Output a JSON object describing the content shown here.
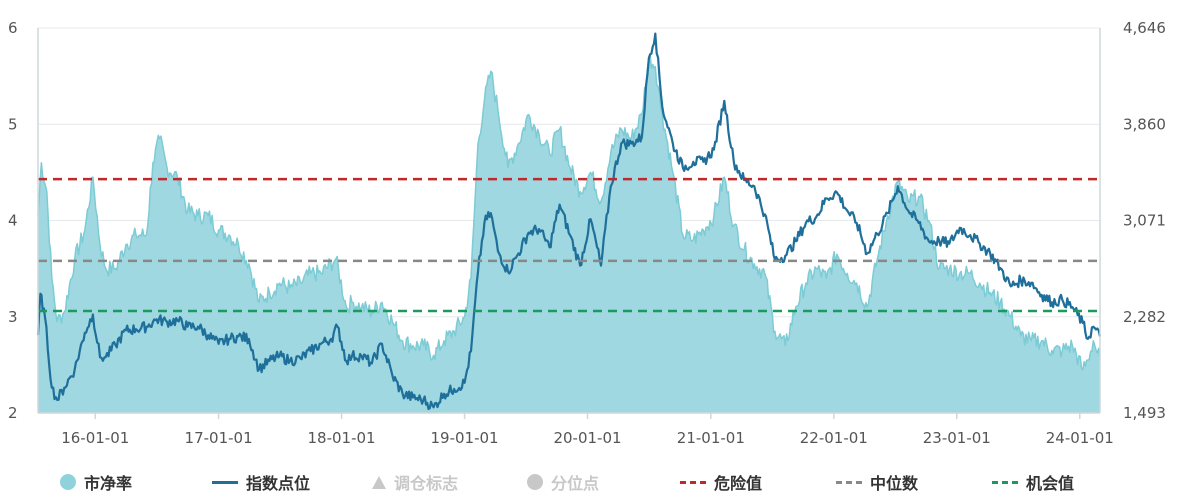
{
  "chart_data": {
    "type": "line",
    "x_tick_labels": [
      "16-01-01",
      "17-01-01",
      "18-01-01",
      "19-01-01",
      "20-01-01",
      "21-01-01",
      "22-01-01",
      "23-01-01",
      "24-01-01"
    ],
    "x_range": [
      "2015-07-15",
      "2024-03-01"
    ],
    "y_left": {
      "range": [
        2,
        6
      ],
      "ticks": [
        "2",
        "3",
        "4",
        "5",
        "6"
      ]
    },
    "y_right": {
      "range": [
        1493,
        4646
      ],
      "ticks": [
        "1,493",
        "2,282",
        "3,071",
        "3,860",
        "4,646"
      ]
    },
    "grid": "horizontal",
    "legend_position": "bottom",
    "colors": {
      "pb_fill": "#9fd8e0",
      "pb_line": "#7ccbd5",
      "index": "#1f6f9b",
      "danger": "#c0282b",
      "median": "#888888",
      "opportunity": "#1a9a5c",
      "axis": "#cfd8dc"
    },
    "reference_lines": [
      {
        "name": "危险值",
        "value": 4.43
      },
      {
        "name": "中位数",
        "value": 3.58
      },
      {
        "name": "机会值",
        "value": 3.06
      }
    ],
    "series": [
      {
        "name": "市净率",
        "axis": "left",
        "type": "area",
        "points": [
          [
            "2015-07-15",
            4.05
          ],
          [
            "2015-07-25",
            4.6
          ],
          [
            "2015-08-10",
            4.3
          ],
          [
            "2015-08-25",
            3.4
          ],
          [
            "2015-09-10",
            2.95
          ],
          [
            "2015-10-01",
            3.05
          ],
          [
            "2015-11-01",
            3.6
          ],
          [
            "2015-12-01",
            3.9
          ],
          [
            "2015-12-25",
            4.45
          ],
          [
            "2016-01-15",
            3.75
          ],
          [
            "2016-02-01",
            3.5
          ],
          [
            "2016-03-01",
            3.5
          ],
          [
            "2016-04-01",
            3.75
          ],
          [
            "2016-05-01",
            3.85
          ],
          [
            "2016-06-01",
            3.85
          ],
          [
            "2016-06-20",
            4.6
          ],
          [
            "2016-07-10",
            4.85
          ],
          [
            "2016-08-01",
            4.55
          ],
          [
            "2016-09-01",
            4.45
          ],
          [
            "2016-10-01",
            4.1
          ],
          [
            "2016-11-01",
            4.05
          ],
          [
            "2016-12-01",
            4.05
          ],
          [
            "2017-01-01",
            3.9
          ],
          [
            "2017-02-01",
            3.85
          ],
          [
            "2017-03-01",
            3.75
          ],
          [
            "2017-04-01",
            3.55
          ],
          [
            "2017-05-01",
            3.15
          ],
          [
            "2017-06-01",
            3.25
          ],
          [
            "2017-07-01",
            3.35
          ],
          [
            "2017-08-01",
            3.3
          ],
          [
            "2017-09-01",
            3.35
          ],
          [
            "2017-10-01",
            3.45
          ],
          [
            "2017-11-01",
            3.45
          ],
          [
            "2017-12-15",
            3.6
          ],
          [
            "2018-01-15",
            3.1
          ],
          [
            "2018-02-01",
            3.15
          ],
          [
            "2018-03-01",
            3.1
          ],
          [
            "2018-04-01",
            3.05
          ],
          [
            "2018-05-01",
            3.15
          ],
          [
            "2018-06-01",
            2.95
          ],
          [
            "2018-07-01",
            2.75
          ],
          [
            "2018-08-01",
            2.7
          ],
          [
            "2018-09-01",
            2.7
          ],
          [
            "2018-10-01",
            2.6
          ],
          [
            "2018-11-01",
            2.75
          ],
          [
            "2018-12-01",
            2.85
          ],
          [
            "2019-01-01",
            3.0
          ],
          [
            "2019-01-20",
            3.4
          ],
          [
            "2019-02-10",
            4.8
          ],
          [
            "2019-03-01",
            5.25
          ],
          [
            "2019-03-20",
            5.55
          ],
          [
            "2019-04-10",
            5.15
          ],
          [
            "2019-05-10",
            4.55
          ],
          [
            "2019-06-10",
            4.8
          ],
          [
            "2019-07-10",
            5.1
          ],
          [
            "2019-08-10",
            4.9
          ],
          [
            "2019-09-10",
            4.7
          ],
          [
            "2019-10-10",
            4.95
          ],
          [
            "2019-11-10",
            4.55
          ],
          [
            "2019-12-10",
            4.3
          ],
          [
            "2020-01-10",
            4.5
          ],
          [
            "2020-02-10",
            4.2
          ],
          [
            "2020-03-10",
            4.7
          ],
          [
            "2020-04-10",
            4.95
          ],
          [
            "2020-05-10",
            4.85
          ],
          [
            "2020-06-10",
            5.1
          ],
          [
            "2020-07-01",
            5.7
          ],
          [
            "2020-07-20",
            5.6
          ],
          [
            "2020-08-10",
            5.1
          ],
          [
            "2020-09-10",
            4.5
          ],
          [
            "2020-10-10",
            3.85
          ],
          [
            "2020-11-10",
            3.8
          ],
          [
            "2020-12-10",
            3.9
          ],
          [
            "2021-01-10",
            4.05
          ],
          [
            "2021-02-10",
            4.45
          ],
          [
            "2021-03-10",
            3.95
          ],
          [
            "2021-04-10",
            3.7
          ],
          [
            "2021-05-10",
            3.55
          ],
          [
            "2021-06-10",
            3.45
          ],
          [
            "2021-07-10",
            2.85
          ],
          [
            "2021-08-10",
            2.7
          ],
          [
            "2021-09-10",
            3.1
          ],
          [
            "2021-10-10",
            3.35
          ],
          [
            "2021-11-10",
            3.5
          ],
          [
            "2021-12-10",
            3.4
          ],
          [
            "2022-01-10",
            3.65
          ],
          [
            "2022-02-10",
            3.45
          ],
          [
            "2022-03-10",
            3.35
          ],
          [
            "2022-04-10",
            3.1
          ],
          [
            "2022-05-10",
            3.6
          ],
          [
            "2022-06-10",
            4.05
          ],
          [
            "2022-07-10",
            4.4
          ],
          [
            "2022-08-10",
            4.2
          ],
          [
            "2022-09-10",
            4.25
          ],
          [
            "2022-10-10",
            4.0
          ],
          [
            "2022-11-10",
            3.5
          ],
          [
            "2022-12-10",
            3.5
          ],
          [
            "2023-01-10",
            3.45
          ],
          [
            "2023-02-10",
            3.45
          ],
          [
            "2023-03-10",
            3.35
          ],
          [
            "2023-04-10",
            3.25
          ],
          [
            "2023-05-10",
            3.15
          ],
          [
            "2023-06-10",
            3.0
          ],
          [
            "2023-07-10",
            2.8
          ],
          [
            "2023-08-10",
            2.75
          ],
          [
            "2023-09-10",
            2.75
          ],
          [
            "2023-10-10",
            2.65
          ],
          [
            "2023-11-10",
            2.65
          ],
          [
            "2023-12-10",
            2.7
          ],
          [
            "2024-01-10",
            2.45
          ],
          [
            "2024-01-25",
            2.55
          ],
          [
            "2024-02-10",
            2.75
          ],
          [
            "2024-03-01",
            2.55
          ]
        ]
      },
      {
        "name": "指数点位",
        "axis": "right",
        "type": "line",
        "points": [
          [
            "2015-07-15",
            2130
          ],
          [
            "2015-07-22",
            2470
          ],
          [
            "2015-08-05",
            2270
          ],
          [
            "2015-08-25",
            1700
          ],
          [
            "2015-09-10",
            1600
          ],
          [
            "2015-10-01",
            1700
          ],
          [
            "2015-11-01",
            1850
          ],
          [
            "2015-12-01",
            2150
          ],
          [
            "2015-12-25",
            2300
          ],
          [
            "2016-01-15",
            1950
          ],
          [
            "2016-02-01",
            1950
          ],
          [
            "2016-03-01",
            2050
          ],
          [
            "2016-04-01",
            2170
          ],
          [
            "2016-05-01",
            2180
          ],
          [
            "2016-06-01",
            2200
          ],
          [
            "2016-07-01",
            2260
          ],
          [
            "2016-08-01",
            2240
          ],
          [
            "2016-09-01",
            2250
          ],
          [
            "2016-10-01",
            2200
          ],
          [
            "2016-11-01",
            2200
          ],
          [
            "2016-12-01",
            2130
          ],
          [
            "2017-01-01",
            2060
          ],
          [
            "2017-02-01",
            2100
          ],
          [
            "2017-03-01",
            2120
          ],
          [
            "2017-04-01",
            2100
          ],
          [
            "2017-05-01",
            1850
          ],
          [
            "2017-06-01",
            1920
          ],
          [
            "2017-07-01",
            1960
          ],
          [
            "2017-08-01",
            1920
          ],
          [
            "2017-09-01",
            1940
          ],
          [
            "2017-10-01",
            2000
          ],
          [
            "2017-11-01",
            2060
          ],
          [
            "2017-12-01",
            2100
          ],
          [
            "2017-12-20",
            2200
          ],
          [
            "2018-01-15",
            1920
          ],
          [
            "2018-02-01",
            1960
          ],
          [
            "2018-03-01",
            1960
          ],
          [
            "2018-04-01",
            1900
          ],
          [
            "2018-05-01",
            2060
          ],
          [
            "2018-06-01",
            1800
          ],
          [
            "2018-07-01",
            1650
          ],
          [
            "2018-08-01",
            1620
          ],
          [
            "2018-09-01",
            1600
          ],
          [
            "2018-10-01",
            1540
          ],
          [
            "2018-11-01",
            1650
          ],
          [
            "2018-12-01",
            1690
          ],
          [
            "2019-01-01",
            1740
          ],
          [
            "2019-01-20",
            2000
          ],
          [
            "2019-02-10",
            2650
          ],
          [
            "2019-03-01",
            3050
          ],
          [
            "2019-03-20",
            3130
          ],
          [
            "2019-04-10",
            2820
          ],
          [
            "2019-05-10",
            2650
          ],
          [
            "2019-06-10",
            2800
          ],
          [
            "2019-07-10",
            2970
          ],
          [
            "2019-08-10",
            3000
          ],
          [
            "2019-09-10",
            2850
          ],
          [
            "2019-10-10",
            3200
          ],
          [
            "2019-11-10",
            2950
          ],
          [
            "2019-12-10",
            2700
          ],
          [
            "2020-01-10",
            3080
          ],
          [
            "2020-02-10",
            2700
          ],
          [
            "2020-03-10",
            3350
          ],
          [
            "2020-04-10",
            3700
          ],
          [
            "2020-05-10",
            3700
          ],
          [
            "2020-06-10",
            3750
          ],
          [
            "2020-07-01",
            4400
          ],
          [
            "2020-07-20",
            4600
          ],
          [
            "2020-08-10",
            4000
          ],
          [
            "2020-09-10",
            3700
          ],
          [
            "2020-10-10",
            3500
          ],
          [
            "2020-11-10",
            3550
          ],
          [
            "2020-12-10",
            3550
          ],
          [
            "2021-01-10",
            3650
          ],
          [
            "2021-02-10",
            4050
          ],
          [
            "2021-03-10",
            3550
          ],
          [
            "2021-04-10",
            3400
          ],
          [
            "2021-05-10",
            3350
          ],
          [
            "2021-06-10",
            3120
          ],
          [
            "2021-07-10",
            2750
          ],
          [
            "2021-08-10",
            2780
          ],
          [
            "2021-09-10",
            2900
          ],
          [
            "2021-10-10",
            3050
          ],
          [
            "2021-11-10",
            3100
          ],
          [
            "2021-12-10",
            3250
          ],
          [
            "2022-01-10",
            3300
          ],
          [
            "2022-02-10",
            3150
          ],
          [
            "2022-03-10",
            3050
          ],
          [
            "2022-04-10",
            2800
          ],
          [
            "2022-05-10",
            2960
          ],
          [
            "2022-06-10",
            3130
          ],
          [
            "2022-07-10",
            3350
          ],
          [
            "2022-08-10",
            3150
          ],
          [
            "2022-09-10",
            3050
          ],
          [
            "2022-10-10",
            2900
          ],
          [
            "2022-11-10",
            2900
          ],
          [
            "2022-12-10",
            2880
          ],
          [
            "2023-01-10",
            3010
          ],
          [
            "2023-02-10",
            2950
          ],
          [
            "2023-03-10",
            2880
          ],
          [
            "2023-04-10",
            2800
          ],
          [
            "2023-05-10",
            2680
          ],
          [
            "2023-06-10",
            2530
          ],
          [
            "2023-07-10",
            2580
          ],
          [
            "2023-08-10",
            2560
          ],
          [
            "2023-09-10",
            2460
          ],
          [
            "2023-10-10",
            2400
          ],
          [
            "2023-11-10",
            2420
          ],
          [
            "2023-12-10",
            2360
          ],
          [
            "2024-01-10",
            2230
          ],
          [
            "2024-01-25",
            2100
          ],
          [
            "2024-02-10",
            2200
          ],
          [
            "2024-03-01",
            2120
          ]
        ]
      }
    ]
  },
  "legend": [
    {
      "name": "市净率",
      "kind": "circle",
      "color": "#8fd2dc",
      "active": true
    },
    {
      "name": "指数点位",
      "kind": "line",
      "color": "#1f6f9b",
      "active": true
    },
    {
      "name": "调仓标志",
      "kind": "triangle",
      "color": "#c8c8c8",
      "active": false
    },
    {
      "name": "分位点",
      "kind": "dot",
      "color": "#c8c8c8",
      "active": false
    },
    {
      "name": "危险值",
      "kind": "dash",
      "color": "#c0282b",
      "active": true
    },
    {
      "name": "中位数",
      "kind": "dash",
      "color": "#888888",
      "active": true
    },
    {
      "name": "机会值",
      "kind": "dash",
      "color": "#1a9a5c",
      "active": true
    }
  ]
}
